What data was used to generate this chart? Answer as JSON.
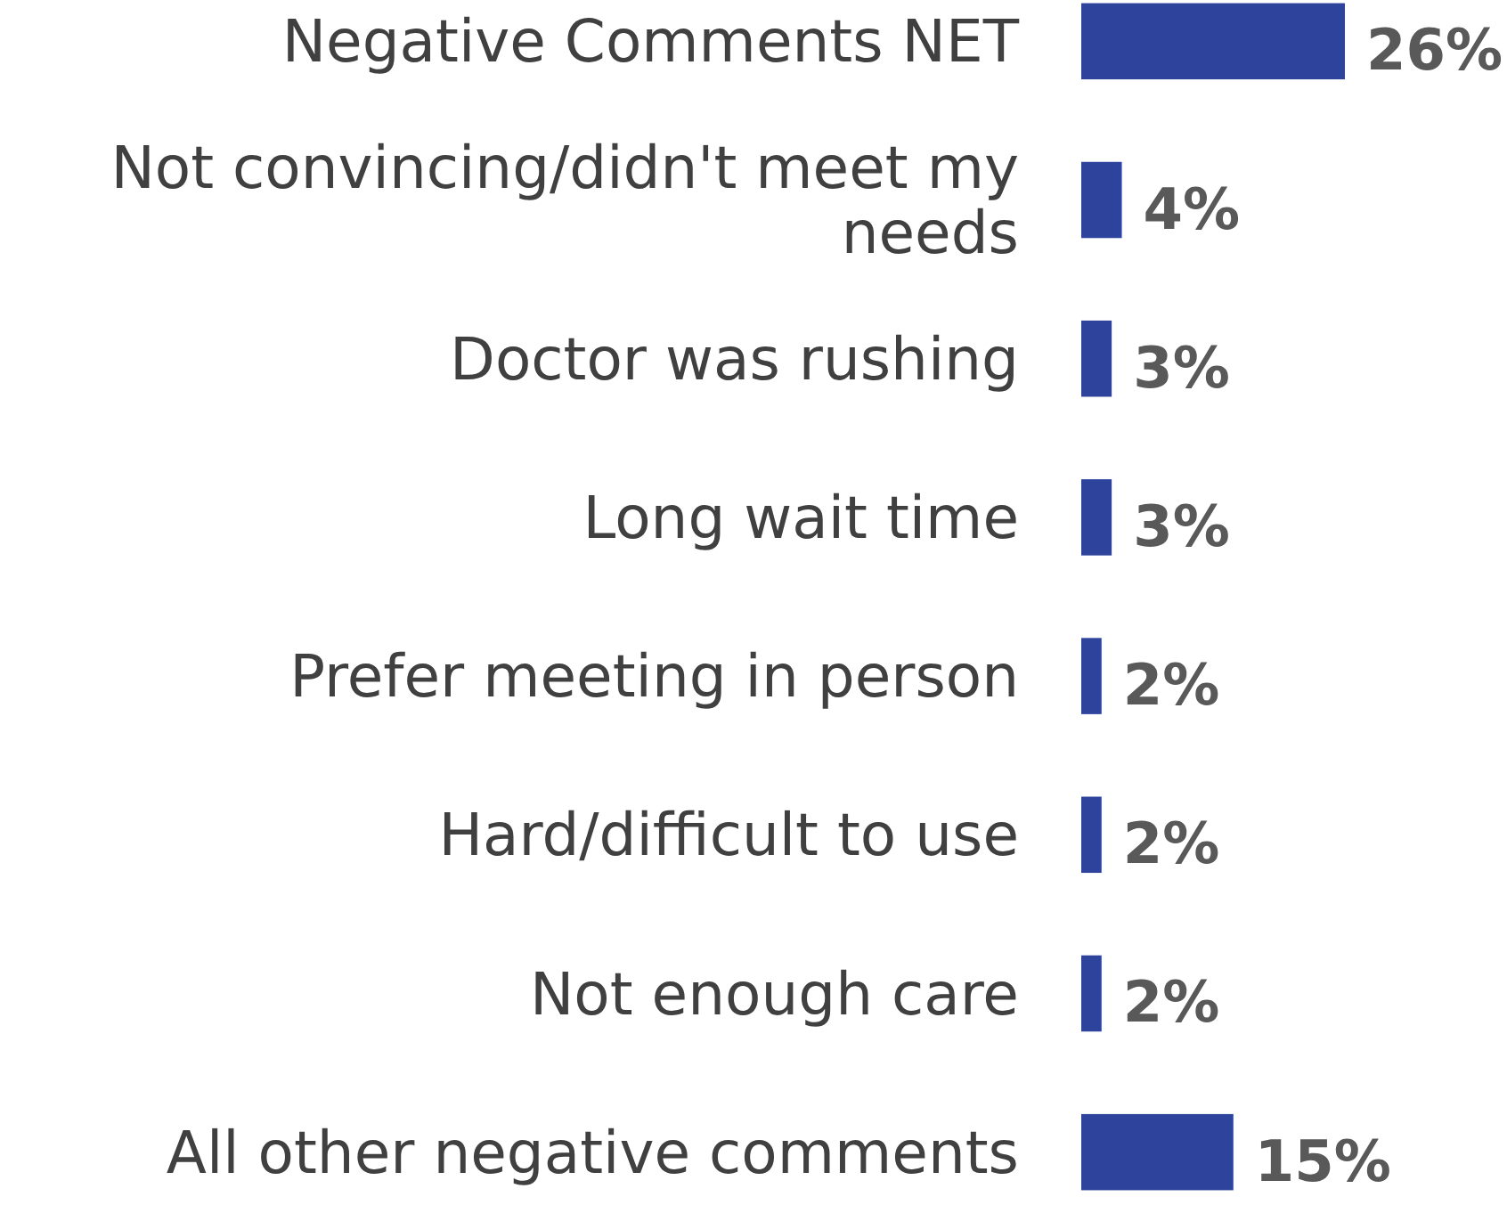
{
  "chart_data": {
    "type": "bar",
    "orientation": "horizontal",
    "categories": [
      "Negative Comments NET",
      "Not convincing/didn't meet my needs",
      "Doctor was rushing",
      "Long wait time",
      "Prefer meeting in person",
      "Hard/difficult to use",
      "Not enough care",
      "All other negative comments"
    ],
    "values": [
      26,
      4,
      3,
      3,
      2,
      2,
      2,
      15
    ],
    "value_labels": [
      "26%",
      "4%",
      "3%",
      "3%",
      "2%",
      "2%",
      "2%",
      "15%"
    ],
    "color": "#2e449c"
  }
}
